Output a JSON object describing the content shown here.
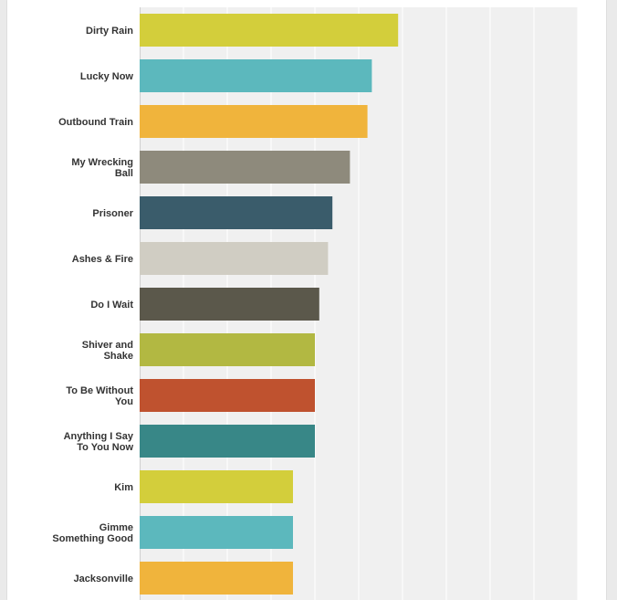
{
  "chart_data": {
    "type": "bar",
    "orientation": "horizontal",
    "title": "",
    "xlabel": "",
    "ylabel": "",
    "xlim": [
      0,
      10
    ],
    "grid": true,
    "legend": "none",
    "categories": [
      [
        "Dirty Rain"
      ],
      [
        "Lucky Now"
      ],
      [
        "Outbound Train"
      ],
      [
        "My Wrecking",
        "Ball"
      ],
      [
        "Prisoner"
      ],
      [
        "Ashes & Fire"
      ],
      [
        "Do I Wait"
      ],
      [
        "Shiver and",
        "Shake"
      ],
      [
        "To Be Without",
        "You"
      ],
      [
        "Anything I Say",
        "To You Now"
      ],
      [
        "Kim"
      ],
      [
        "Gimme",
        "Something Good"
      ],
      [
        "Jacksonville"
      ]
    ],
    "values": [
      5.9,
      5.3,
      5.2,
      4.8,
      4.4,
      4.3,
      4.1,
      4.0,
      4.0,
      4.0,
      3.5,
      3.5,
      3.5
    ],
    "colors": [
      "#d3ce3b",
      "#5cb8bd",
      "#f0b43c",
      "#8e8a7c",
      "#3a5c6b",
      "#d0cdc3",
      "#5b584b",
      "#b2b842",
      "#bf522f",
      "#388787",
      "#d3ce3b",
      "#5cb8bd",
      "#f0b43c"
    ]
  }
}
